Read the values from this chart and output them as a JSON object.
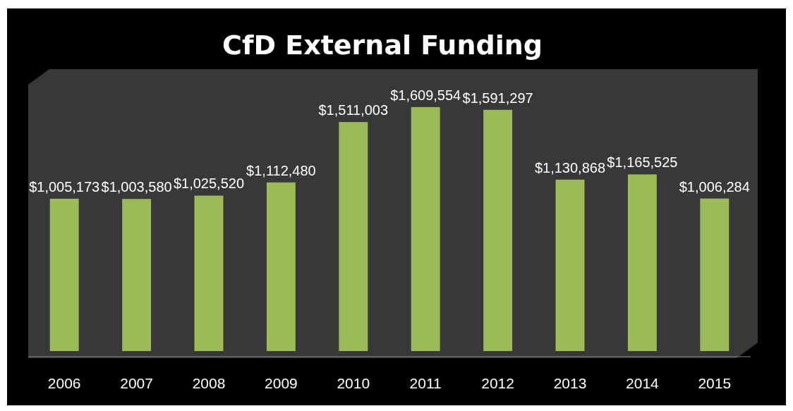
{
  "chart_data": {
    "type": "bar",
    "title": "CfD External Funding",
    "categories": [
      "2006",
      "2007",
      "2008",
      "2009",
      "2010",
      "2011",
      "2012",
      "2013",
      "2014",
      "2015"
    ],
    "values": [
      1005173,
      1003580,
      1025520,
      1112480,
      1511003,
      1609554,
      1591297,
      1130868,
      1165525,
      1006284
    ],
    "value_labels": [
      "$1,005,173",
      "$1,003,580",
      "$1,025,520",
      "$1,112,480",
      "$1,511,003",
      "$1,609,554",
      "$1,591,297",
      "$1,130,868",
      "$1,165,525",
      "$1,006,284"
    ],
    "color": "#9bbb59"
  }
}
